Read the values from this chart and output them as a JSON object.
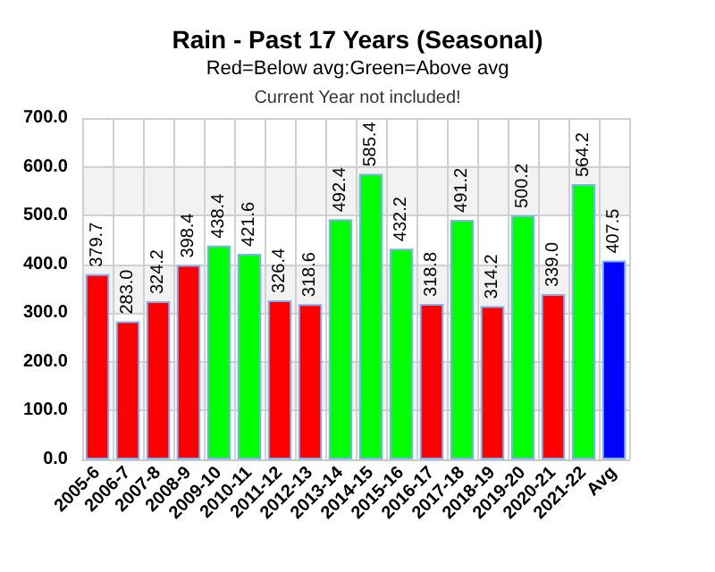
{
  "chart_data": {
    "type": "bar",
    "title": "Rain - Past 17 Years (Seasonal)",
    "subtitle": "Red=Below avg:Green=Above avg",
    "annotations": [
      "Current Year not included!"
    ],
    "categories": [
      "2005-6",
      "2006-7",
      "2007-8",
      "2008-9",
      "2009-10",
      "2010-11",
      "2011-12",
      "2012-13",
      "2013-14",
      "2014-15",
      "2015-16",
      "2016-17",
      "2017-18",
      "2018-19",
      "2019-20",
      "2020-21",
      "2021-22",
      "Avg"
    ],
    "values": [
      379.7,
      283.0,
      324.2,
      398.4,
      438.4,
      421.6,
      326.4,
      318.6,
      492.4,
      585.4,
      432.2,
      318.8,
      491.2,
      314.2,
      500.2,
      339.0,
      564.2,
      407.5
    ],
    "value_labels": [
      "379.7",
      "283.0",
      "324.2",
      "398.4",
      "438.4",
      "421.6",
      "326.4",
      "318.6",
      "492.4",
      "585.4",
      "432.2",
      "318.8",
      "491.2",
      "314.2",
      "500.2",
      "339.0",
      "564.2",
      "407.5"
    ],
    "colors": [
      "#ff0000",
      "#ff0000",
      "#ff0000",
      "#ff0000",
      "#00ff00",
      "#00ff00",
      "#ff0000",
      "#ff0000",
      "#00ff00",
      "#00ff00",
      "#00ff00",
      "#ff0000",
      "#00ff00",
      "#ff0000",
      "#00ff00",
      "#ff0000",
      "#00ff00",
      "#0000ff"
    ],
    "ylim": [
      0,
      700
    ],
    "yticks": [
      {
        "value": 0,
        "label": "0.0"
      },
      {
        "value": 100,
        "label": "100.0"
      },
      {
        "value": 200,
        "label": "200.0"
      },
      {
        "value": 300,
        "label": "300.0"
      },
      {
        "value": 400,
        "label": "400.0"
      },
      {
        "value": 500,
        "label": "500.0"
      },
      {
        "value": 600,
        "label": "600.0"
      },
      {
        "value": 700,
        "label": "700.0"
      }
    ],
    "grid": true
  }
}
